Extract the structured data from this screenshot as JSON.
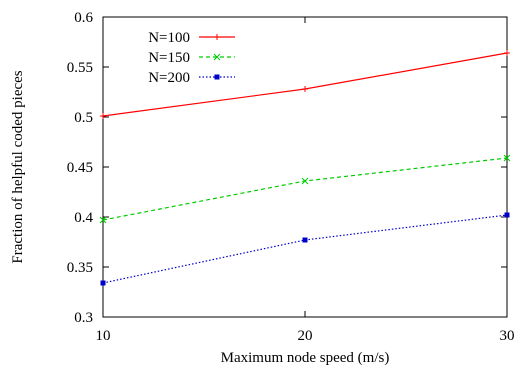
{
  "chart_data": {
    "type": "line",
    "title": "",
    "xlabel": "Maximum node speed (m/s)",
    "ylabel": "Fraction of helpful coded pieces",
    "x": [
      10,
      20,
      30
    ],
    "xlim": [
      10,
      30
    ],
    "ylim": [
      0.3,
      0.6
    ],
    "xticks": [
      "10",
      "20",
      "30"
    ],
    "yticks": [
      "0.3",
      "0.35",
      "0.4",
      "0.45",
      "0.5",
      "0.55",
      "0.6"
    ],
    "grid": false,
    "legend_position": "top-left",
    "series": [
      {
        "name": "N=100",
        "values": [
          0.501,
          0.528,
          0.564
        ],
        "color": "#ff0000",
        "dash": "solid",
        "marker": "plus"
      },
      {
        "name": "N=150",
        "values": [
          0.397,
          0.436,
          0.459
        ],
        "color": "#00cc00",
        "dash": "dashed",
        "marker": "cross"
      },
      {
        "name": "N=200",
        "values": [
          0.334,
          0.377,
          0.402
        ],
        "color": "#0000cc",
        "dash": "dotted",
        "marker": "square"
      }
    ]
  }
}
